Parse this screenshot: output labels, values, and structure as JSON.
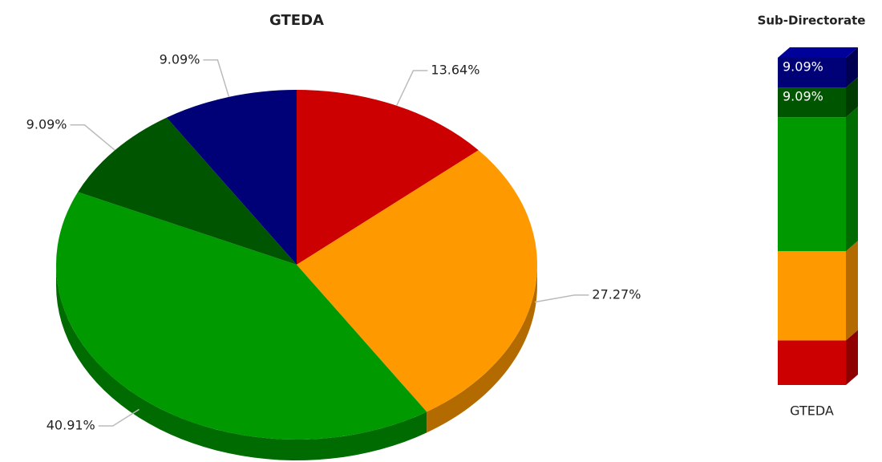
{
  "chart_data": [
    {
      "type": "pie",
      "title": "GTEDA",
      "values": [
        13.64,
        27.27,
        40.91,
        9.09,
        9.09
      ],
      "value_labels": [
        "13.64%",
        "27.27%",
        "40.91%",
        "9.09%",
        "9.09%"
      ],
      "colors": [
        "#cc0000",
        "#ff9900",
        "#009900",
        "#005500",
        "#000077"
      ]
    },
    {
      "type": "stacked-bar",
      "title": "Sub-Directorate",
      "categories": [
        "GTEDA"
      ],
      "series": [
        {
          "color": "#cc0000",
          "values": [
            13.64
          ]
        },
        {
          "color": "#ff9900",
          "values": [
            27.27
          ]
        },
        {
          "color": "#009900",
          "values": [
            40.91
          ]
        },
        {
          "color": "#005500",
          "values": [
            9.09
          ],
          "value_labels": [
            "9.09%"
          ]
        },
        {
          "color": "#000077",
          "values": [
            9.09
          ],
          "value_labels": [
            "9.09%"
          ]
        }
      ]
    }
  ]
}
